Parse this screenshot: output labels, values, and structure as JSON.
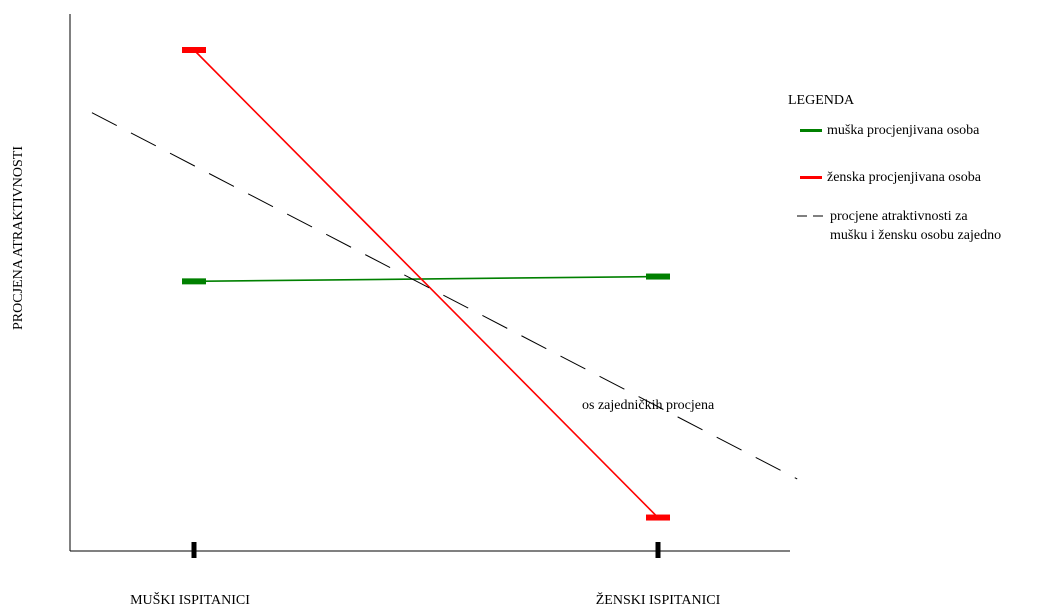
{
  "chart_data": {
    "type": "line",
    "title": "",
    "xlabel": "",
    "ylabel": "PROCJENA ATRAKTIVNOSTI",
    "categories": [
      "MUŠKI ISPITANICI",
      "ŽENSKI ISPITANICI"
    ],
    "ylim": [
      0,
      100
    ],
    "grid": false,
    "legend": {
      "title": "LEGENDA",
      "placement": "right",
      "entries": [
        {
          "label": "muška procjenjivana osoba",
          "color": "#008000",
          "style": "solid"
        },
        {
          "label": "ženska procjenjivana osoba",
          "color": "#ff0000",
          "style": "solid"
        },
        {
          "label_lines": [
            "procjene atraktivnosti za",
            "mušku i žensku osobu zajedno"
          ],
          "color": "#000000",
          "style": "dashed"
        }
      ]
    },
    "series": [
      {
        "name": "muška procjenjivana osoba",
        "color": "#008000",
        "values": [
          52,
          53
        ],
        "markers": true
      },
      {
        "name": "ženska procjenjivana osoba",
        "color": "#ff0000",
        "values": [
          100,
          3
        ],
        "markers": true
      },
      {
        "name": "procjene atraktivnosti za mušku i žensku osobu zajedno",
        "color": "#000000",
        "style": "dashed",
        "x_extent": [
          -0.22,
          1.3
        ],
        "values": [
          87,
          11
        ],
        "markers": false
      }
    ],
    "annotations": [
      {
        "text": "os zajedničkih procjena"
      }
    ]
  }
}
